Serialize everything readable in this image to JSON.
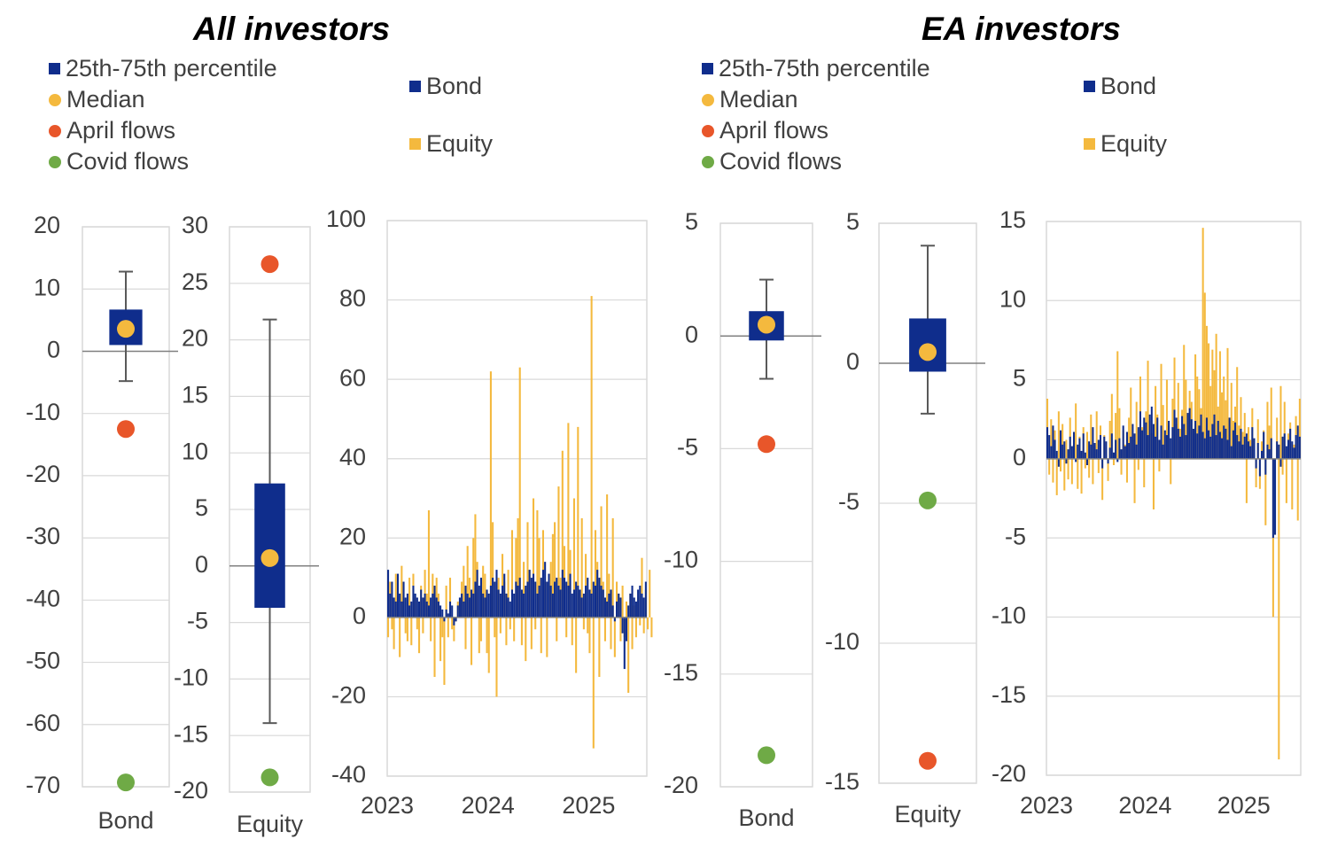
{
  "colors": {
    "bond": "#0F2D8C",
    "equity": "#F4B93E",
    "median": "#F4B93E",
    "april": "#E8562A",
    "covid": "#6FAA46",
    "grid": "#D9D9D9",
    "axis": "#808080",
    "whisker": "#595959"
  },
  "groups": [
    {
      "title": "All investors",
      "legend_left": [
        {
          "label": "25th-75th percentile",
          "kind": "square",
          "color": "#0F2D8C"
        },
        {
          "label": "Median",
          "kind": "dot",
          "color": "#F4B93E"
        },
        {
          "label": "April flows",
          "kind": "dot",
          "color": "#E8562A"
        },
        {
          "label": "Covid flows",
          "kind": "dot",
          "color": "#6FAA46"
        }
      ],
      "legend_right": [
        {
          "label": "Bond",
          "kind": "square",
          "color": "#0F2D8C"
        },
        {
          "label": "Equity",
          "kind": "square",
          "color": "#F4B93E"
        }
      ]
    },
    {
      "title": "EA investors",
      "legend_left": [
        {
          "label": "25th-75th percentile",
          "kind": "square",
          "color": "#0F2D8C"
        },
        {
          "label": "Median",
          "kind": "dot",
          "color": "#F4B93E"
        },
        {
          "label": "April flows",
          "kind": "dot",
          "color": "#E8562A"
        },
        {
          "label": "Covid flows",
          "kind": "dot",
          "color": "#6FAA46"
        }
      ],
      "legend_right": [
        {
          "label": "Bond",
          "kind": "square",
          "color": "#0F2D8C"
        },
        {
          "label": "Equity",
          "kind": "square",
          "color": "#F4B93E"
        }
      ]
    }
  ],
  "chart_data": [
    {
      "type": "box",
      "group": "All investors",
      "category": "Bond",
      "yticks": [
        "20",
        "10",
        "0",
        "-10",
        "-20",
        "-30",
        "-40",
        "-50",
        "-60",
        "-70"
      ],
      "ylim": [
        -70,
        20
      ],
      "whisker_low": -4.8,
      "q1": 1.0,
      "median": 3.6,
      "q3": 6.7,
      "whisker_high": 12.8,
      "april": -12.5,
      "covid": -69.3
    },
    {
      "type": "box",
      "group": "All investors",
      "category": "Equity",
      "yticks": [
        "30",
        "25",
        "20",
        "15",
        "10",
        "5",
        "0",
        "-5",
        "-10",
        "-15",
        "-20"
      ],
      "ylim": [
        -20,
        30
      ],
      "whisker_low": -13.9,
      "q1": -3.7,
      "median": 0.7,
      "q3": 7.3,
      "whisker_high": 21.8,
      "april": 26.7,
      "covid": -18.7
    },
    {
      "type": "bar",
      "group": "All investors",
      "title": "",
      "x_ticks": [
        "2023",
        "2024",
        "2025"
      ],
      "x_tick_positions": [
        0,
        52,
        104
      ],
      "n_weeks": 134,
      "yticks": [
        "100",
        "80",
        "60",
        "40",
        "20",
        "0",
        "-20",
        "-40"
      ],
      "ylim": [
        -40,
        100
      ],
      "series": [
        {
          "name": "Bond",
          "values": [
            12,
            6,
            9,
            5,
            4,
            11,
            6,
            4,
            9,
            5,
            6,
            3,
            4,
            8,
            6,
            5,
            4,
            7,
            5,
            6,
            4,
            3,
            5,
            6,
            8,
            5,
            4,
            3,
            2,
            -1,
            2,
            1,
            4,
            3,
            -2,
            -1,
            3,
            5,
            6,
            4,
            8,
            6,
            5,
            7,
            6,
            9,
            12,
            8,
            10,
            6,
            5,
            7,
            6,
            8,
            10,
            9,
            12,
            7,
            6,
            8,
            11,
            6,
            5,
            4,
            7,
            6,
            9,
            8,
            10,
            7,
            6,
            8,
            9,
            12,
            10,
            11,
            9,
            6,
            8,
            10,
            12,
            14,
            9,
            11,
            8,
            6,
            9,
            10,
            8,
            7,
            12,
            10,
            9,
            8,
            11,
            6,
            7,
            9,
            8,
            7,
            5,
            6,
            8,
            10,
            7,
            6,
            9,
            8,
            12,
            10,
            8,
            7,
            5,
            4,
            6,
            7,
            3,
            -1,
            4,
            6,
            5,
            -4,
            -13,
            -6,
            3,
            6,
            8,
            5,
            4,
            7,
            8,
            6,
            5,
            9
          ]
        },
        {
          "name": "Equity",
          "values": [
            -5,
            9,
            -3,
            -8,
            11,
            5,
            -10,
            13,
            4,
            -4,
            -6,
            10,
            -7,
            11,
            5,
            -3,
            -9,
            8,
            -4,
            12,
            6,
            27,
            -6,
            11,
            -15,
            10,
            6,
            -11,
            -5,
            -17,
            8,
            -5,
            10,
            -3,
            -6,
            -1,
            4,
            3,
            9,
            13,
            -8,
            18,
            10,
            -12,
            20,
            26,
            14,
            -9,
            -6,
            13,
            11,
            -9,
            -14,
            62,
            24,
            -5,
            -20,
            10,
            -4,
            16,
            9,
            -7,
            12,
            -3,
            22,
            -6,
            20,
            25,
            63,
            -7,
            14,
            -11,
            24,
            12,
            -8,
            30,
            -3,
            27,
            20,
            -9,
            22,
            9,
            -10,
            8,
            14,
            21,
            24,
            -6,
            33,
            10,
            42,
            18,
            -5,
            49,
            17,
            -7,
            30,
            -14,
            48,
            6,
            25,
            -3,
            16,
            -4,
            -9,
            81,
            -33,
            22,
            14,
            -15,
            28,
            9,
            -6,
            31,
            11,
            -8,
            25,
            -10,
            9,
            6,
            -6,
            8,
            -5,
            4,
            -19,
            6,
            -8,
            3,
            -5,
            5,
            -2,
            15,
            -4,
            7,
            -3,
            12,
            -5
          ]
        }
      ]
    },
    {
      "type": "box",
      "group": "EA investors",
      "category": "Bond",
      "yticks": [
        "5",
        "0",
        "-5",
        "-10",
        "-15",
        "-20"
      ],
      "ylim": [
        -20,
        5
      ],
      "whisker_low": -1.9,
      "q1": -0.2,
      "median": 0.5,
      "q3": 1.1,
      "whisker_high": 2.5,
      "april": -4.8,
      "covid": -18.6
    },
    {
      "type": "box",
      "group": "EA investors",
      "category": "Equity",
      "yticks": [
        "5",
        "0",
        "-5",
        "-10",
        "-15"
      ],
      "ylim": [
        -15,
        5
      ],
      "whisker_low": -1.8,
      "q1": -0.3,
      "median": 0.4,
      "q3": 1.6,
      "whisker_high": 4.2,
      "april": -14.2,
      "covid": -4.9
    },
    {
      "type": "bar",
      "group": "EA investors",
      "title": "",
      "x_ticks": [
        "2023",
        "2024",
        "2025"
      ],
      "x_tick_positions": [
        0,
        52,
        104
      ],
      "n_weeks": 134,
      "yticks": [
        "15",
        "10",
        "5",
        "0",
        "-5",
        "-10",
        "-15",
        "-20"
      ],
      "ylim": [
        -20,
        15
      ],
      "series": [
        {
          "name": "Bond",
          "values": [
            2,
            1.5,
            0.8,
            2.1,
            1.2,
            0.5,
            -0.5,
            1.8,
            0.9,
            1.1,
            -0.3,
            0.6,
            1.4,
            0.8,
            1.7,
            -0.2,
            0.9,
            1.3,
            0.5,
            1.6,
            0.4,
            -0.4,
            1.1,
            0.9,
            2.0,
            1.0,
            0.6,
            1.2,
            1.5,
            -0.6,
            1.4,
            1.1,
            -0.3,
            0.7,
            1.6,
            0.4,
            1.2,
            -0.2,
            1.3,
            0.6,
            2.1,
            0.8,
            1.7,
            1.0,
            1.4,
            2.2,
            1.6,
            0.9,
            2.0,
            3.0,
            1.8,
            2.6,
            2.3,
            1.5,
            2.8,
            3.3,
            2.2,
            1.4,
            2.6,
            1.2,
            2.1,
            0.9,
            1.8,
            1.5,
            2.4,
            1.3,
            2.0,
            3.1,
            2.6,
            1.9,
            1.4,
            2.7,
            2.2,
            1.5,
            2.9,
            3.2,
            2.5,
            1.9,
            2.4,
            1.6,
            2.1,
            2.8,
            1.7,
            1.3,
            2.6,
            1.8,
            1.4,
            2.2,
            2.8,
            1.5,
            2.4,
            1.7,
            1.3,
            2.1,
            1.9,
            1.2,
            2.6,
            0.8,
            1.8,
            2.3,
            1.5,
            1.1,
            1.9,
            0.9,
            1.4,
            1.6,
            1.1,
            0.8,
            2.0,
            1.3,
            -0.6,
            1.0,
            -1.1,
            0.5,
            1.7,
            -1.0,
            0.9,
            0.6,
            1.3,
            -5,
            -4.8,
            1.1,
            0.9,
            -0.5,
            1.4,
            1.6,
            0.8,
            1.2,
            1.9,
            1.1,
            0.7,
            1.5,
            2.1,
            1.4
          ]
        },
        {
          "name": "Equity",
          "values": [
            3.8,
            -1.0,
            2.5,
            -1.5,
            1.8,
            -2.3,
            3.0,
            -0.8,
            2.2,
            -2.0,
            1.2,
            -1.3,
            2.6,
            -1.6,
            0.9,
            3.5,
            -1.9,
            1.4,
            -2.2,
            2.0,
            -0.6,
            1.7,
            -1.2,
            2.8,
            -1.6,
            0.8,
            3.0,
            -0.9,
            2.1,
            -2.6,
            1.5,
            0.7,
            -1.4,
            2.4,
            4.1,
            -0.4,
            2.9,
            6.8,
            3.2,
            -1.0,
            1.8,
            0.9,
            -1.5,
            2.6,
            4.5,
            1.2,
            -2.8,
            3.6,
            -0.7,
            5.2,
            2.0,
            -1.8,
            3.0,
            6.2,
            2.4,
            1.6,
            -3.2,
            4.6,
            2.8,
            -0.8,
            6.0,
            3.4,
            1.5,
            5.0,
            2.1,
            -1.6,
            3.8,
            6.4,
            2.2,
            4.8,
            1.9,
            3.1,
            7.2,
            5.0,
            2.4,
            4.3,
            3.6,
            1.8,
            6.6,
            5.2,
            4.4,
            3.2,
            14.6,
            10.5,
            8.4,
            7.3,
            4.6,
            6.9,
            5.6,
            7.9,
            3.3,
            6.8,
            4.2,
            5.2,
            3.7,
            7.0,
            2.6,
            4.8,
            2.4,
            3.3,
            5.8,
            2.1,
            3.9,
            1.7,
            2.9,
            -2.8,
            2.0,
            1.2,
            3.2,
            0.8,
            -1.8,
            2.5,
            -1.9,
            1.1,
            1.8,
            -4.2,
            3.6,
            2.1,
            4.5,
            -10,
            -4.8,
            2.6,
            -19,
            4.6,
            -1.0,
            3.6,
            -2.8,
            1.6,
            2.3,
            -3.2,
            0.9,
            2.7,
            -3.9,
            3.8
          ]
        }
      ]
    }
  ]
}
